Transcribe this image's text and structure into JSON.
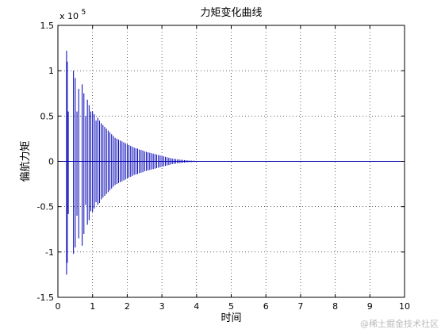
{
  "chart_data": {
    "type": "line",
    "title": "力矩变化曲线",
    "xlabel": "时间",
    "ylabel": "偏航力矩",
    "xlim": [
      0,
      10
    ],
    "ylim": [
      -150000,
      150000
    ],
    "x_ticks": [
      0,
      1,
      2,
      3,
      4,
      5,
      6,
      7,
      8,
      9,
      10
    ],
    "x_tick_labels": [
      "0",
      "1",
      "2",
      "3",
      "4",
      "5",
      "6",
      "7",
      "8",
      "9",
      "10"
    ],
    "y_ticks": [
      -1.5,
      -1,
      -0.5,
      0,
      0.5,
      1,
      1.5
    ],
    "y_tick_labels": [
      "-1.5",
      "-1",
      "-0.5",
      "0",
      "0.5",
      "1",
      "1.5"
    ],
    "y_exponent_label": "x 10",
    "y_exponent": "5",
    "grid": true,
    "line_color": "#0000b4",
    "series": [
      {
        "x": [
          0.25,
          0.27,
          0.3,
          0.45,
          0.5,
          0.55,
          0.6,
          0.7,
          0.75,
          0.8,
          0.85,
          0.9,
          0.95,
          1.0,
          1.05,
          1.1,
          1.15,
          1.2,
          1.25,
          1.3,
          1.35,
          1.4,
          1.45,
          1.5,
          1.55,
          1.6,
          1.65,
          1.7,
          1.75,
          1.8,
          1.85,
          1.9,
          1.95,
          2.0,
          2.05,
          2.1,
          2.15,
          2.2,
          2.25,
          2.3,
          2.35,
          2.4,
          2.45,
          2.5,
          2.55,
          2.6,
          2.65,
          2.7,
          2.75,
          2.8,
          2.85,
          2.9,
          2.95,
          3.0,
          3.05,
          3.1,
          3.15,
          3.2,
          3.25,
          3.3,
          3.35,
          3.4,
          3.45,
          3.5,
          3.55,
          3.6,
          3.65,
          3.7,
          3.75,
          3.8,
          3.85,
          3.9,
          3.95,
          4.0,
          4.05,
          4.1,
          4.15,
          4.2,
          4.25,
          4.3,
          4.35,
          4.4,
          4.45,
          4.5,
          4.55,
          4.6,
          4.65,
          4.7,
          4.8,
          4.9,
          5.0
        ],
        "y_max": [
          122000,
          110000,
          55000,
          100000,
          92000,
          55000,
          80000,
          85000,
          75000,
          50000,
          68000,
          62000,
          55000,
          55000,
          52000,
          45000,
          48000,
          45000,
          42000,
          40000,
          38000,
          36000,
          34000,
          32000,
          30000,
          28000,
          26000,
          25000,
          24000,
          23000,
          22000,
          21000,
          20000,
          19000,
          18000,
          17000,
          16000,
          15000,
          14500,
          14000,
          13000,
          12500,
          12000,
          11000,
          10500,
          10000,
          9500,
          9000,
          8500,
          8000,
          7500,
          7000,
          6500,
          6000,
          5500,
          5000,
          4500,
          4000,
          3500,
          3000,
          2800,
          2500,
          2200,
          2000,
          1800,
          1600,
          1400,
          1200,
          1000,
          900,
          800,
          700,
          600,
          500,
          450,
          400,
          350,
          300,
          250,
          200,
          180,
          160,
          140,
          120,
          100,
          80,
          70,
          60,
          50,
          40,
          30
        ],
        "y_min": [
          -125000,
          -112000,
          -58000,
          -102000,
          -95000,
          -60000,
          -85000,
          -93000,
          -80000,
          -48000,
          -70000,
          -65000,
          -55000,
          -56000,
          -52000,
          -45000,
          -48000,
          -46000,
          -42000,
          -40000,
          -38000,
          -36000,
          -34000,
          -32000,
          -30000,
          -28000,
          -26000,
          -25000,
          -24000,
          -23000,
          -22000,
          -21000,
          -20000,
          -19000,
          -18000,
          -17000,
          -16000,
          -15000,
          -14500,
          -14000,
          -13000,
          -12500,
          -12000,
          -11000,
          -10500,
          -10000,
          -9500,
          -9000,
          -8500,
          -8000,
          -7500,
          -7000,
          -6500,
          -6000,
          -5500,
          -5000,
          -4500,
          -4000,
          -3500,
          -3000,
          -2800,
          -2500,
          -2200,
          -2000,
          -1800,
          -1600,
          -1400,
          -1200,
          -1000,
          -900,
          -800,
          -700,
          -600,
          -500,
          -450,
          -400,
          -350,
          -300,
          -250,
          -200,
          -180,
          -160,
          -140,
          -120,
          -100,
          -80,
          -70,
          -60,
          -50,
          -40,
          -30
        ]
      }
    ]
  },
  "watermark": "@稀土掘金技术社区"
}
